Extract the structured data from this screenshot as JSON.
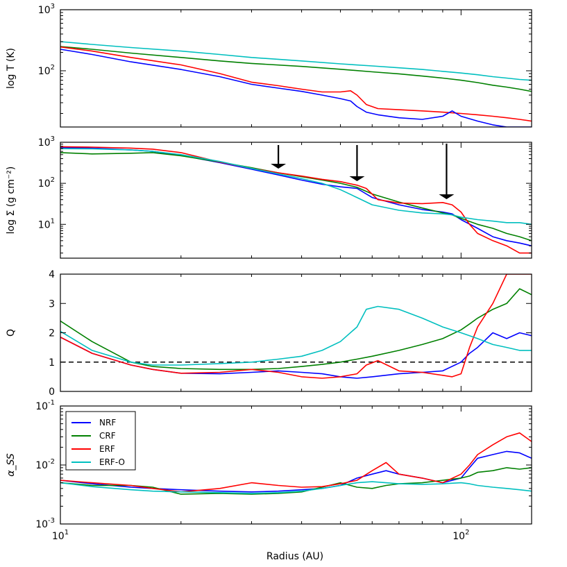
{
  "chart_data": {
    "type": "line",
    "xscale": "log",
    "xlim": [
      10,
      150
    ],
    "xlabel": "Radius (AU)",
    "x_ticks": [
      {
        "value": 10,
        "label": "10",
        "sup": "1"
      },
      {
        "value": 100,
        "label": "10",
        "sup": "2"
      }
    ],
    "colors": {
      "NRF": "#0000ff",
      "CRF": "#008000",
      "ERF": "#ff0000",
      "ERF-O": "#00bfbf"
    },
    "legend": {
      "entries": [
        "NRF",
        "CRF",
        "ERF",
        "ERF-O"
      ],
      "location": "upper-left of bottom panel"
    },
    "panels": [
      {
        "id": "temperature",
        "ylabel": "log T (K)",
        "yscale": "log",
        "ylim": [
          12,
          1000
        ],
        "y_ticks": [
          {
            "value": 100,
            "label": "10",
            "sup": "2"
          },
          {
            "value": 1000,
            "label": "10",
            "sup": "3"
          }
        ],
        "series": [
          {
            "name": "ERF-O",
            "x": [
              10,
              12,
              15,
              20,
              25,
              30,
              40,
              50,
              60,
              70,
              80,
              90,
              100,
              110,
              120,
              130,
              140,
              150
            ],
            "y": [
              300,
              270,
              240,
              210,
              185,
              165,
              145,
              130,
              120,
              112,
              105,
              98,
              92,
              86,
              80,
              76,
              72,
              70
            ]
          },
          {
            "name": "CRF",
            "x": [
              10,
              12,
              15,
              20,
              25,
              30,
              40,
              50,
              60,
              70,
              80,
              90,
              100,
              110,
              120,
              130,
              140,
              150
            ],
            "y": [
              250,
              225,
              195,
              165,
              145,
              132,
              118,
              106,
              96,
              89,
              82,
              76,
              70,
              64,
              58,
              54,
              50,
              46
            ]
          },
          {
            "name": "ERF",
            "x": [
              10,
              12,
              15,
              20,
              25,
              30,
              35,
              40,
              45,
              50,
              53,
              55,
              58,
              62,
              70,
              80,
              90,
              100,
              110,
              120,
              130,
              140,
              150
            ],
            "y": [
              245,
              210,
              165,
              125,
              90,
              65,
              57,
              50,
              45,
              45,
              47,
              40,
              28,
              24,
              23,
              22,
              21,
              20,
              19,
              18,
              17,
              16,
              15
            ]
          },
          {
            "name": "NRF",
            "x": [
              10,
              12,
              15,
              20,
              25,
              30,
              35,
              40,
              45,
              50,
              53,
              55,
              58,
              62,
              70,
              80,
              90,
              95,
              100,
              110,
              120,
              130,
              140,
              150
            ],
            "y": [
              225,
              185,
              140,
              105,
              80,
              60,
              52,
              46,
              40,
              35,
              32,
              26,
              21,
              19,
              17,
              16,
              18,
              22,
              18,
              15,
              13,
              12,
              12,
              12
            ]
          }
        ]
      },
      {
        "id": "surface-density",
        "ylabel": "log Σ (g cm⁻²)",
        "yscale": "log",
        "ylim": [
          1.5,
          1000
        ],
        "y_ticks": [
          {
            "value": 10,
            "label": "10",
            "sup": "1"
          },
          {
            "value": 100,
            "label": "10",
            "sup": "2"
          },
          {
            "value": 1000,
            "label": "10",
            "sup": "3"
          }
        ],
        "arrows": [
          {
            "x": 35
          },
          {
            "x": 55
          },
          {
            "x": 92
          }
        ],
        "series": [
          {
            "name": "NRF",
            "x": [
              10,
              12,
              15,
              17,
              20,
              25,
              30,
              35,
              40,
              45,
              50,
              55,
              60,
              70,
              80,
              90,
              95,
              100,
              110,
              120,
              130,
              140,
              150
            ],
            "y": [
              750,
              720,
              650,
              600,
              480,
              320,
              220,
              160,
              120,
              95,
              82,
              75,
              45,
              30,
              23,
              20,
              18,
              13,
              8,
              5,
              4,
              3.5,
              3
            ]
          },
          {
            "name": "CRF",
            "x": [
              10,
              12,
              15,
              17,
              20,
              25,
              30,
              35,
              40,
              45,
              50,
              55,
              60,
              70,
              80,
              90,
              95,
              100,
              110,
              120,
              130,
              140,
              150
            ],
            "y": [
              560,
              520,
              540,
              560,
              470,
              330,
              240,
              180,
              145,
              120,
              100,
              80,
              55,
              35,
              25,
              19,
              17,
              14,
              10,
              8,
              6,
              5,
              4
            ]
          },
          {
            "name": "ERF",
            "x": [
              10,
              12,
              15,
              17,
              20,
              25,
              30,
              35,
              40,
              45,
              50,
              55,
              58,
              62,
              70,
              80,
              90,
              95,
              100,
              105,
              110,
              120,
              130,
              140,
              150
            ],
            "y": [
              780,
              760,
              720,
              680,
              560,
              330,
              230,
              180,
              150,
              125,
              110,
              90,
              75,
              40,
              33,
              32,
              34,
              30,
              20,
              10,
              6,
              4,
              3,
              2,
              2
            ]
          },
          {
            "name": "ERF-O",
            "x": [
              10,
              12,
              15,
              17,
              20,
              25,
              30,
              35,
              40,
              45,
              50,
              55,
              60,
              70,
              80,
              90,
              95,
              100,
              110,
              120,
              130,
              140,
              150
            ],
            "y": [
              700,
              690,
              650,
              600,
              500,
              340,
              230,
              170,
              130,
              100,
              70,
              45,
              30,
              22,
              19,
              18,
              17,
              15,
              13,
              12,
              11,
              11,
              10
            ]
          }
        ]
      },
      {
        "id": "toomre-q",
        "ylabel": "Q",
        "yscale": "linear",
        "ylim": [
          0,
          4
        ],
        "y_ticks": [
          {
            "value": 0,
            "label": "0"
          },
          {
            "value": 1,
            "label": "1"
          },
          {
            "value": 2,
            "label": "2"
          },
          {
            "value": 3,
            "label": "3"
          },
          {
            "value": 4,
            "label": "4"
          }
        ],
        "reference_line": {
          "y": 1,
          "style": "dashed"
        },
        "series": [
          {
            "name": "NRF",
            "x": [
              10,
              12,
              15,
              17,
              20,
              25,
              30,
              35,
              40,
              45,
              50,
              55,
              60,
              70,
              80,
              90,
              100,
              105,
              110,
              120,
              130,
              140,
              150
            ],
            "y": [
              1.85,
              1.3,
              0.9,
              0.75,
              0.62,
              0.6,
              0.65,
              0.7,
              0.65,
              0.6,
              0.5,
              0.45,
              0.5,
              0.6,
              0.65,
              0.7,
              1.0,
              1.3,
              1.5,
              2.0,
              1.8,
              2.0,
              1.9
            ]
          },
          {
            "name": "CRF",
            "x": [
              10,
              12,
              15,
              17,
              20,
              25,
              30,
              35,
              40,
              45,
              50,
              55,
              60,
              70,
              80,
              90,
              100,
              105,
              110,
              120,
              130,
              140,
              150
            ],
            "y": [
              2.4,
              1.7,
              1.0,
              0.85,
              0.78,
              0.75,
              0.75,
              0.78,
              0.85,
              0.92,
              1.0,
              1.1,
              1.2,
              1.4,
              1.6,
              1.8,
              2.1,
              2.3,
              2.5,
              2.8,
              3.0,
              3.5,
              3.3
            ]
          },
          {
            "name": "ERF",
            "x": [
              10,
              12,
              15,
              17,
              20,
              25,
              30,
              35,
              40,
              45,
              50,
              55,
              58,
              62,
              70,
              80,
              90,
              95,
              100,
              105,
              110,
              120,
              130,
              140,
              150
            ],
            "y": [
              1.85,
              1.3,
              0.9,
              0.75,
              0.62,
              0.65,
              0.75,
              0.65,
              0.5,
              0.45,
              0.5,
              0.6,
              0.9,
              1.05,
              0.7,
              0.65,
              0.55,
              0.5,
              0.6,
              1.5,
              2.2,
              3.0,
              4.0,
              4.0,
              4.0
            ]
          },
          {
            "name": "ERF-O",
            "x": [
              10,
              12,
              15,
              17,
              20,
              25,
              30,
              35,
              40,
              45,
              50,
              55,
              58,
              62,
              70,
              80,
              90,
              100,
              105,
              110,
              120,
              130,
              140,
              150
            ],
            "y": [
              2.05,
              1.4,
              1.0,
              0.9,
              0.9,
              0.95,
              1.0,
              1.1,
              1.2,
              1.4,
              1.7,
              2.2,
              2.8,
              2.9,
              2.8,
              2.5,
              2.2,
              2.0,
              1.9,
              1.8,
              1.6,
              1.5,
              1.4,
              1.4
            ]
          }
        ]
      },
      {
        "id": "alpha-ss",
        "ylabel": "α_SS",
        "yscale": "log",
        "ylim": [
          0.001,
          0.1
        ],
        "y_ticks": [
          {
            "value": 0.001,
            "label": "10",
            "sup": "-3"
          },
          {
            "value": 0.01,
            "label": "10",
            "sup": "-2"
          },
          {
            "value": 0.1,
            "label": "10",
            "sup": "-1"
          }
        ],
        "series": [
          {
            "name": "NRF",
            "x": [
              10,
              12,
              15,
              17,
              20,
              25,
              30,
              35,
              40,
              45,
              50,
              55,
              60,
              65,
              70,
              80,
              90,
              100,
              105,
              110,
              120,
              130,
              140,
              150
            ],
            "y": [
              0.0055,
              0.0048,
              0.0042,
              0.004,
              0.0038,
              0.0036,
              0.0035,
              0.0036,
              0.0038,
              0.004,
              0.0045,
              0.006,
              0.007,
              0.008,
              0.007,
              0.006,
              0.005,
              0.006,
              0.009,
              0.013,
              0.015,
              0.017,
              0.016,
              0.013
            ]
          },
          {
            "name": "CRF",
            "x": [
              10,
              12,
              15,
              17,
              20,
              25,
              30,
              35,
              40,
              45,
              50,
              55,
              60,
              65,
              70,
              80,
              90,
              100,
              105,
              110,
              120,
              130,
              140,
              150
            ],
            "y": [
              0.005,
              0.0045,
              0.0045,
              0.0042,
              0.0032,
              0.0033,
              0.0032,
              0.0033,
              0.0035,
              0.0042,
              0.005,
              0.0042,
              0.004,
              0.0045,
              0.0048,
              0.005,
              0.0055,
              0.006,
              0.0065,
              0.0075,
              0.008,
              0.009,
              0.0085,
              0.009
            ]
          },
          {
            "name": "ERF",
            "x": [
              10,
              12,
              15,
              17,
              20,
              25,
              30,
              35,
              40,
              45,
              50,
              55,
              60,
              65,
              70,
              80,
              90,
              100,
              105,
              110,
              120,
              130,
              140,
              150
            ],
            "y": [
              0.0055,
              0.005,
              0.0045,
              0.004,
              0.0035,
              0.004,
              0.005,
              0.0045,
              0.0042,
              0.0043,
              0.0048,
              0.0055,
              0.008,
              0.011,
              0.007,
              0.006,
              0.005,
              0.007,
              0.01,
              0.015,
              0.022,
              0.03,
              0.035,
              0.025
            ]
          },
          {
            "name": "ERF-O",
            "x": [
              10,
              12,
              15,
              17,
              20,
              25,
              30,
              35,
              40,
              45,
              50,
              55,
              60,
              65,
              70,
              80,
              90,
              100,
              105,
              110,
              120,
              130,
              140,
              150
            ],
            "y": [
              0.005,
              0.0043,
              0.0038,
              0.0036,
              0.0035,
              0.0034,
              0.0033,
              0.0034,
              0.0036,
              0.004,
              0.0045,
              0.005,
              0.0052,
              0.005,
              0.0048,
              0.0047,
              0.0048,
              0.005,
              0.0048,
              0.0045,
              0.0042,
              0.004,
              0.0038,
              0.0036
            ]
          }
        ]
      }
    ]
  }
}
